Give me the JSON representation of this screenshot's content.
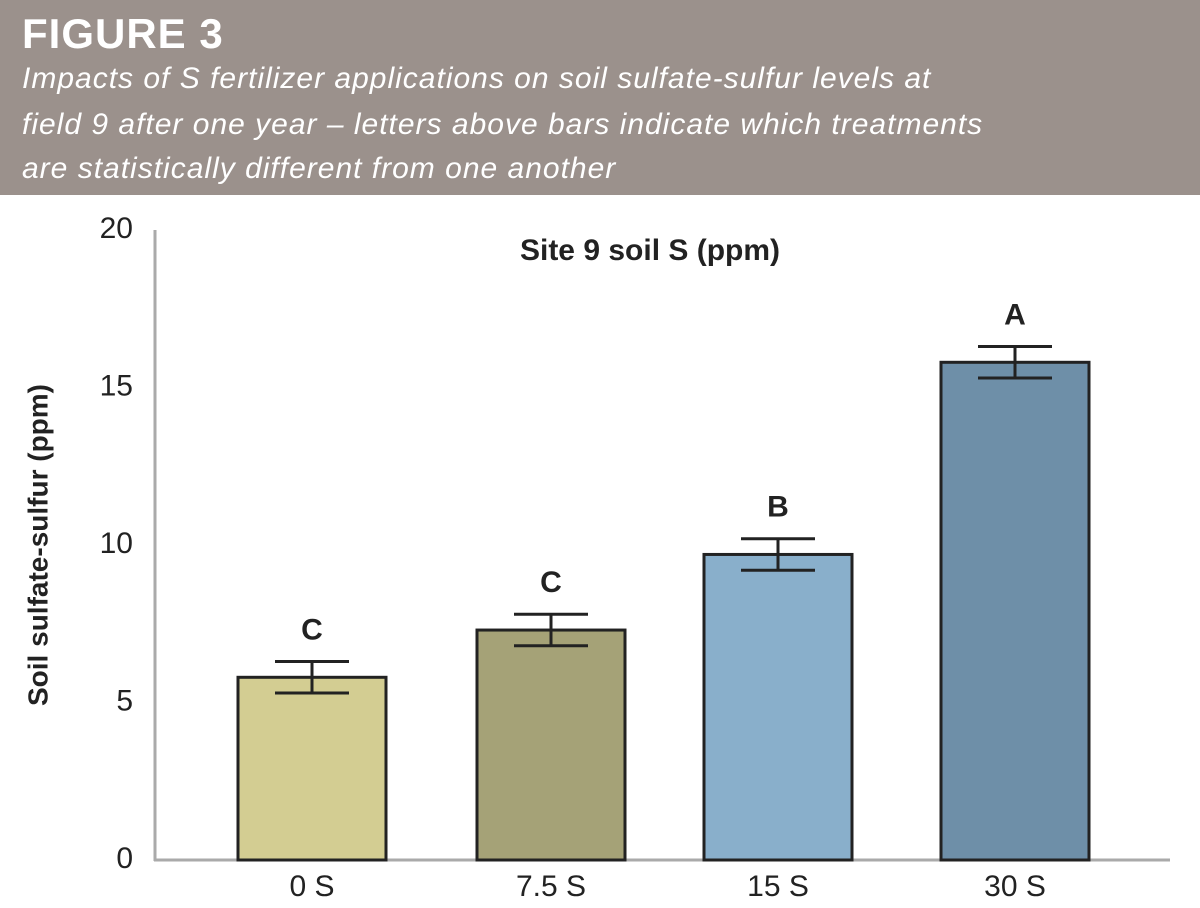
{
  "header": {
    "figure": "FIGURE 3",
    "subtitle": [
      "Impacts of S fertilizer applications on soil sulfate-sulfur levels at",
      "field 9 after one year – letters above bars indicate which treatments",
      "are statistically different from one another"
    ]
  },
  "chart_data": {
    "type": "bar",
    "title": "Site 9 soil S (ppm)",
    "y_label": "Soil sulfate-sulfur (ppm)",
    "categories": [
      "0 S",
      "7.5 S",
      "15 S",
      "30 S"
    ],
    "values": [
      5.8,
      7.3,
      9.7,
      15.8
    ],
    "errors": [
      0.5,
      0.5,
      0.5,
      0.5
    ],
    "letters": [
      "C",
      "C",
      "B",
      "A"
    ],
    "colors": [
      "#d3cd92",
      "#a5a277",
      "#89afcb",
      "#6e8fa8"
    ],
    "ylim": [
      0,
      20
    ],
    "yticks": [
      0,
      5,
      10,
      15,
      20
    ],
    "grid": false
  }
}
